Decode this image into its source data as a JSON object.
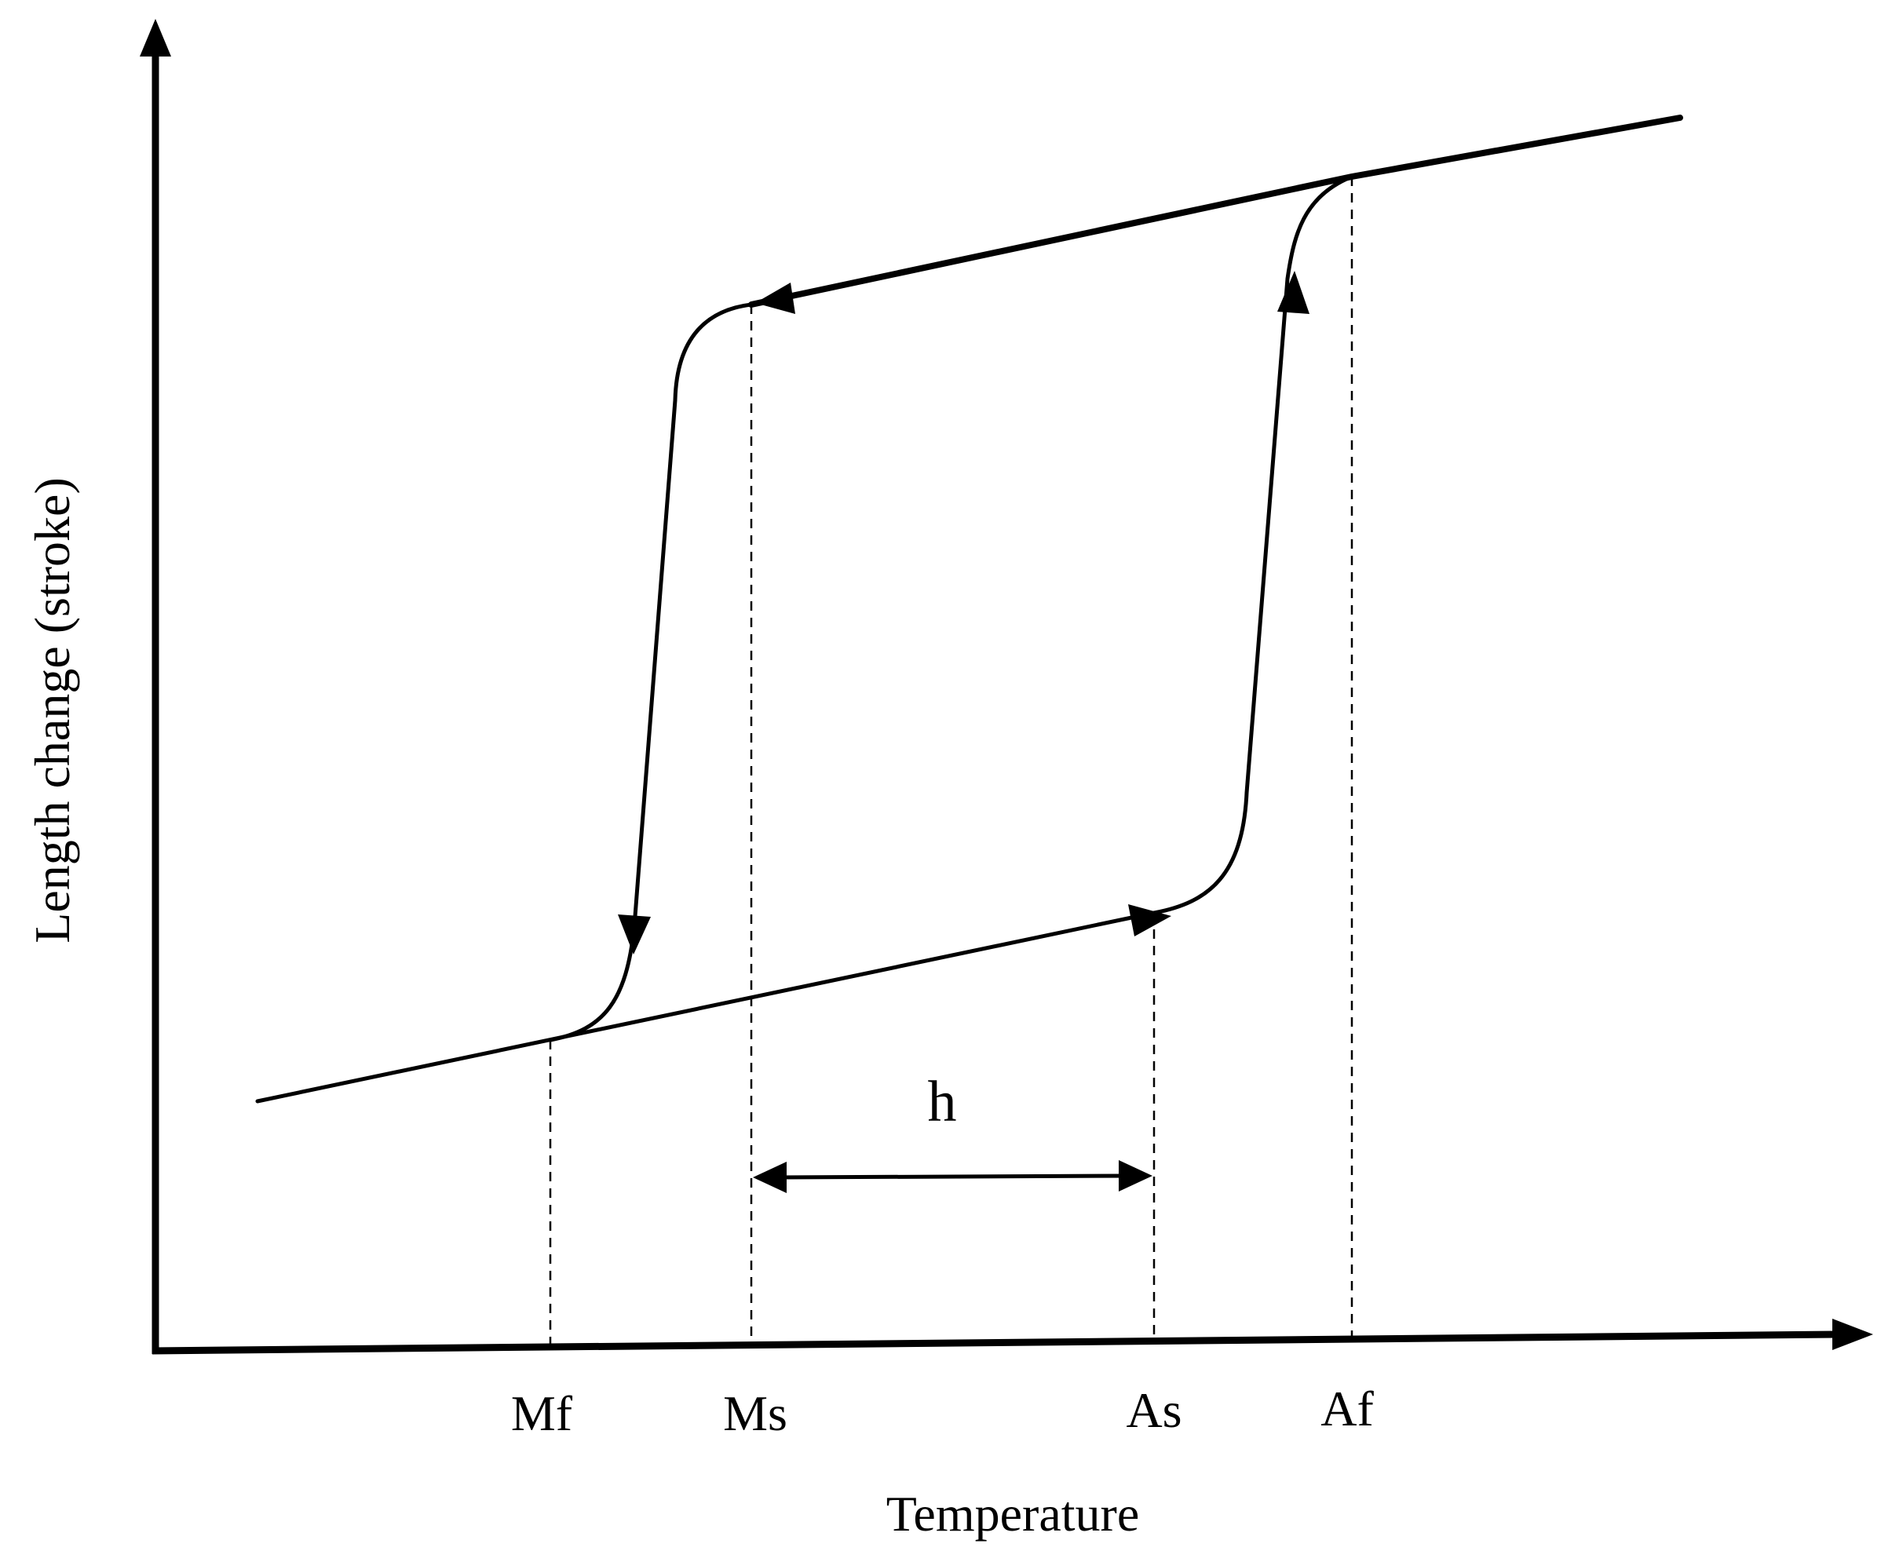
{
  "diagram": {
    "x_axis_label": "Temperature",
    "y_axis_label": "Length change (stroke)",
    "temperature_marks": [
      "Mf",
      "Ms",
      "As",
      "Af"
    ],
    "hysteresis_label": "h",
    "line_color": "#000000",
    "background_color": "#ffffff"
  }
}
